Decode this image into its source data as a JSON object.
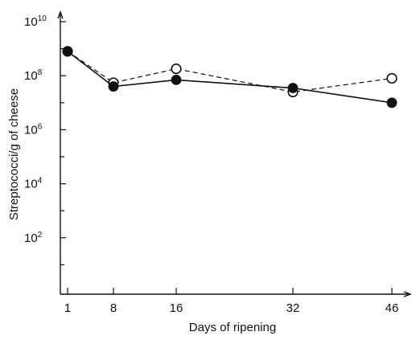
{
  "chart_data": {
    "type": "line",
    "xlabel": "Days of ripening",
    "ylabel": "Streptococci/g of cheese",
    "y_scale": "log",
    "x_ticks": [
      "1",
      "8",
      "16",
      "32",
      "46"
    ],
    "y_ticks": [
      {
        "value": 100,
        "base": "10",
        "exp": "2"
      },
      {
        "value": 10000,
        "base": "10",
        "exp": "4"
      },
      {
        "value": 1000000,
        "base": "10",
        "exp": "6"
      },
      {
        "value": 100000000,
        "base": "10",
        "exp": "8"
      },
      {
        "value": 10000000000,
        "base": "10",
        "exp": "10"
      }
    ],
    "ylim": [
      1,
      10000000000
    ],
    "x": [
      1,
      8,
      16,
      32,
      46
    ],
    "series": [
      {
        "style": "filled-solid",
        "values": [
          800000000,
          40000000,
          70000000,
          35000000,
          10000000
        ]
      },
      {
        "style": "open-dashed",
        "values": [
          800000000,
          55000000,
          180000000,
          25000000,
          80000000
        ]
      }
    ],
    "grid": false,
    "legend": "none"
  }
}
